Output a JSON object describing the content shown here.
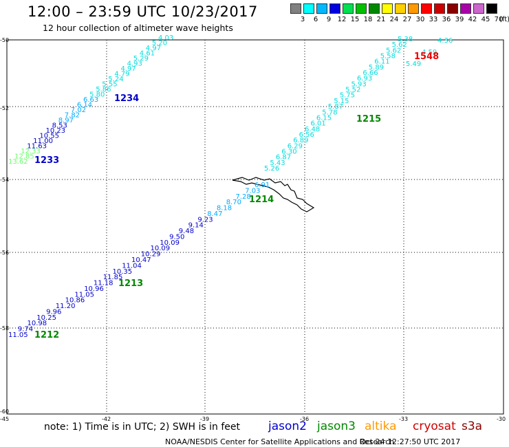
{
  "header": {
    "title": "12:00 – 23:59 UTC 10/23/2017",
    "subtitle": "12 hour collection of altimeter wave heights"
  },
  "colorbar": {
    "unit": "(ft)",
    "labels": [
      "3",
      "6",
      "9",
      "12",
      "15",
      "18",
      "21",
      "24",
      "27",
      "30",
      "33",
      "36",
      "39",
      "42",
      "45",
      "70"
    ],
    "colors": [
      "#808080",
      "#00ffff",
      "#00b8ff",
      "#0000e0",
      "#00e050",
      "#00c000",
      "#008800",
      "#ffff00",
      "#ffd000",
      "#ff9900",
      "#ff0000",
      "#cc0000",
      "#880000",
      "#aa00aa",
      "#cc66cc",
      "#000000"
    ]
  },
  "axes": {
    "y_ticks": [
      "-50",
      "-52",
      "-54",
      "-56",
      "-58",
      "-60"
    ],
    "x_ticks": [
      "-45",
      "-42",
      "-39",
      "-36",
      "-33",
      "-30"
    ]
  },
  "footer": {
    "note": "note: 1) Time is in UTC; 2) SWH is in feet",
    "center": "NOAA/NESDIS Center for Satellite Applications and Research",
    "timestamp": "Oct 24 12:27:50 UTC 2017"
  },
  "legend": [
    {
      "name": "jason2",
      "color": "#0000cc"
    },
    {
      "name": "jason3",
      "color": "#008800"
    },
    {
      "name": "altika",
      "color": "#ff9900"
    },
    {
      "name": "cryosat",
      "color": "#cc0000"
    },
    {
      "name": "s3a",
      "color": "#880000"
    }
  ],
  "tracks": [
    {
      "time": "1233",
      "time_color": "#0000cc",
      "values": [
        "13.62",
        "12.85",
        "12.33",
        "11.63",
        "11.00",
        "10.55",
        "10.23",
        "8.53",
        "8.97",
        "7.82",
        "7.02",
        "6.14",
        "6.63",
        "5.80",
        "5.86",
        "5.55",
        "5.24",
        "4.79",
        "4.97",
        "4.93",
        "5.29",
        "4.61",
        "4.97",
        "5.20",
        "4.03"
      ],
      "colors": [
        "#66ff66",
        "#66ff66",
        "#66ff66",
        "#0000cc",
        "#0000cc",
        "#0000cc",
        "#0000cc",
        "#0000cc",
        "#00aaff",
        "#00aaff",
        "#00aaff",
        "#00aaff",
        "#00aaff",
        "#00dddd",
        "#00dddd",
        "#00dddd",
        "#00dddd",
        "#00dddd",
        "#00dddd",
        "#00dddd",
        "#00dddd",
        "#00dddd",
        "#00dddd",
        "#00dddd",
        "#00dddd"
      ]
    },
    {
      "time": "1234",
      "time_color": "#0000cc",
      "values": [],
      "colors": []
    },
    {
      "time": "1212",
      "time_color": "#008800",
      "values": [
        "11.05",
        "9.74",
        "10.98",
        "10.25",
        "9.96",
        "11.20",
        "10.86",
        "11.05",
        "10.96",
        "11.18",
        "11.85",
        "10.35",
        "11.04",
        "10.47",
        "10.29",
        "10.09",
        "10.09",
        "9.50",
        "9.48",
        "9.14",
        "9.23",
        "8.47",
        "8.18",
        "8.70",
        "7.28",
        "7.03",
        "6.91"
      ],
      "colors": [
        "#0000cc",
        "#0000cc",
        "#0000cc",
        "#0000cc",
        "#0000cc",
        "#0000cc",
        "#0000cc",
        "#0000cc",
        "#0000cc",
        "#0000cc",
        "#0000cc",
        "#0000cc",
        "#0000cc",
        "#0000cc",
        "#0000cc",
        "#0000cc",
        "#0000cc",
        "#0000cc",
        "#0000cc",
        "#0000cc",
        "#0000cc",
        "#00aaff",
        "#00aaff",
        "#00aaff",
        "#00aaff",
        "#00aaff",
        "#00aaff"
      ]
    },
    {
      "time": "1213",
      "time_color": "#008800",
      "values": [],
      "colors": []
    },
    {
      "time": "1214",
      "time_color": "#008800",
      "values": [],
      "colors": []
    },
    {
      "time": "1215",
      "time_color": "#008800",
      "values": [
        "5.26",
        "5.43",
        "6.87",
        "6.30",
        "6.29",
        "6.89",
        "6.56",
        "6.48",
        "6.01",
        "6.15",
        "5.78",
        "5.87",
        "5.15",
        "5.75",
        "5.52",
        "5.93",
        "6.93",
        "6.66",
        "5.89",
        "6.11",
        "5.58",
        "5.62",
        "5.62",
        "5.38"
      ],
      "colors": [
        "#00dddd",
        "#00dddd",
        "#00dddd",
        "#00dddd",
        "#00dddd",
        "#00dddd",
        "#00dddd",
        "#00dddd",
        "#00dddd",
        "#00dddd",
        "#00dddd",
        "#00dddd",
        "#00dddd",
        "#00dddd",
        "#00dddd",
        "#00dddd",
        "#00dddd",
        "#00dddd",
        "#00dddd",
        "#00dddd",
        "#00dddd",
        "#00dddd",
        "#00dddd",
        "#00dddd"
      ]
    },
    {
      "time": "1548",
      "time_color": "#ee0000",
      "values": [
        "5.49",
        "4.59",
        "4.36"
      ],
      "colors": [
        "#00dddd",
        "#00dddd",
        "#00dddd"
      ]
    }
  ]
}
